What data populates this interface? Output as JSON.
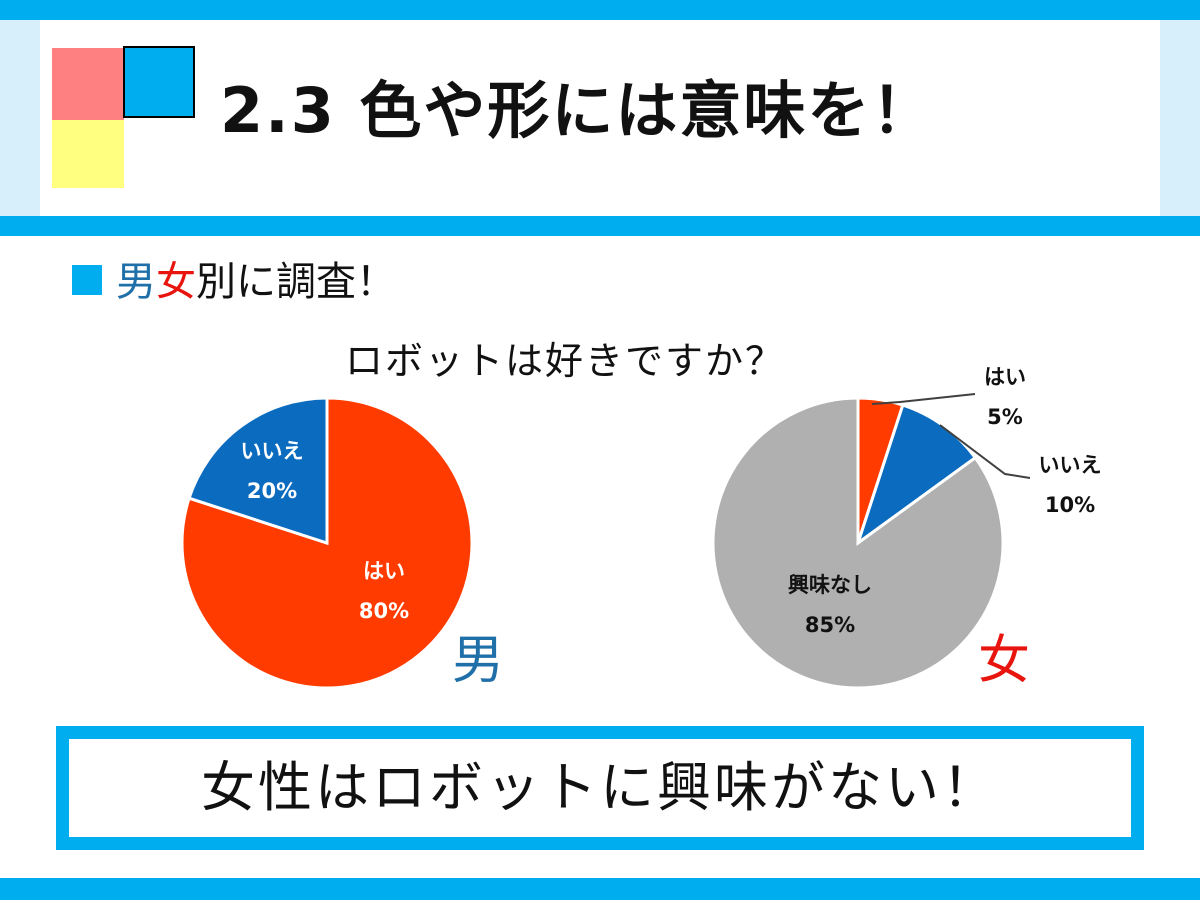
{
  "title": "2.3 色や形には意味を！",
  "subheading": {
    "part_male": "男",
    "part_female": "女",
    "rest": "別に調査！"
  },
  "question": "ロボットは好きですか？",
  "colors": {
    "accent": "#00aeef",
    "red_square": "#ff8080",
    "yellow_square": "#ffff80",
    "male_text": "#1f6fa8",
    "female_text": "#e8150e"
  },
  "chart_data": [
    {
      "type": "pie",
      "group_label": "男",
      "slices": [
        {
          "label": "はい",
          "value": 80,
          "display": "80%",
          "color": "#ff3b00"
        },
        {
          "label": "いいえ",
          "value": 20,
          "display": "20%",
          "color": "#0a6bbf"
        }
      ]
    },
    {
      "type": "pie",
      "group_label": "女",
      "slices": [
        {
          "label": "はい",
          "value": 5,
          "display": "5%",
          "color": "#ff3b00"
        },
        {
          "label": "いいえ",
          "value": 10,
          "display": "10%",
          "color": "#0a6bbf"
        },
        {
          "label": "興味なし",
          "value": 85,
          "display": "85%",
          "color": "#b0b0b0"
        }
      ]
    }
  ],
  "conclusion": "女性はロボットに興味がない！"
}
